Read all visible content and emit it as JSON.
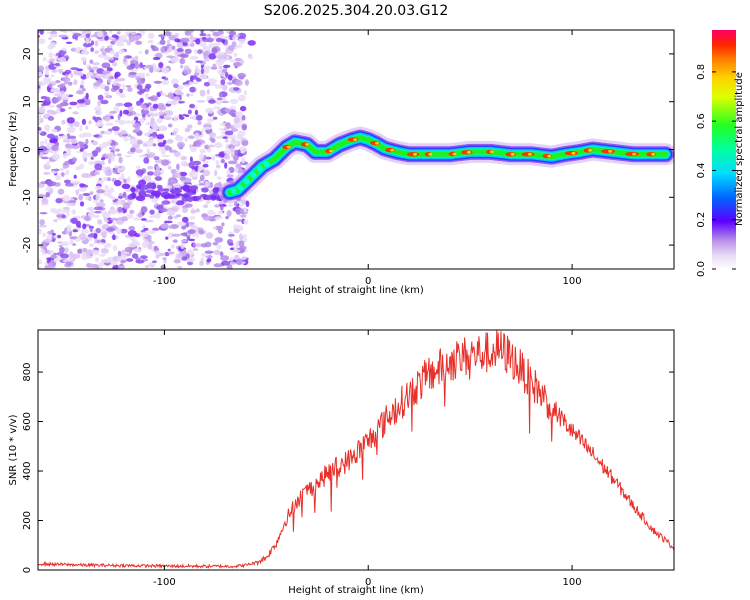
{
  "title": "S206.2025.304.20.03.G12",
  "chart_data": [
    {
      "type": "heatmap",
      "xlabel": "Height of straight line (km)",
      "ylabel": "Frequency (Hz)",
      "xlim": [
        -162,
        150
      ],
      "ylim": [
        -25,
        25
      ],
      "xticks": [
        -100,
        0,
        100
      ],
      "yticks": [
        -20,
        -10,
        0,
        10,
        20
      ],
      "colorbar": {
        "label": "Normalized spectral amplitude",
        "range": [
          0,
          0.97
        ],
        "ticks": [
          0.0,
          0.2,
          0.4,
          0.6,
          0.8
        ]
      },
      "ridge": {
        "x": [
          -68,
          -64,
          -58,
          -52,
          -46,
          -40,
          -36,
          -30,
          -26,
          -20,
          -14,
          -8,
          -4,
          0,
          4,
          8,
          14,
          20,
          30,
          40,
          50,
          60,
          70,
          80,
          90,
          96,
          104,
          110,
          120,
          130,
          140,
          146
        ],
        "y": [
          -9,
          -8.5,
          -6,
          -3.5,
          -2,
          0.5,
          1.5,
          1,
          -0.5,
          -0.5,
          1,
          2,
          2.5,
          2,
          1.2,
          0.2,
          -0.5,
          -1,
          -1,
          -1,
          -0.5,
          -0.5,
          -1,
          -1,
          -1.5,
          -1,
          -0.5,
          0,
          -0.5,
          -1,
          -1,
          -1
        ]
      },
      "noise_region_x": [
        -162,
        -60
      ]
    },
    {
      "type": "line",
      "xlabel": "Height of straight line (km)",
      "ylabel": "SNR (10 * v/v)",
      "xlim": [
        -162,
        150
      ],
      "ylim": [
        0,
        970
      ],
      "xticks": [
        -100,
        0,
        100
      ],
      "yticks": [
        0,
        200,
        400,
        600,
        800
      ],
      "series": [
        {
          "name": "SNR",
          "color": "#e8302a",
          "x": [
            -162,
            -140,
            -120,
            -100,
            -80,
            -65,
            -60,
            -55,
            -50,
            -45,
            -40,
            -35,
            -30,
            -25,
            -20,
            -15,
            -10,
            -5,
            0,
            10,
            20,
            30,
            40,
            50,
            60,
            65,
            70,
            80,
            90,
            100,
            110,
            120,
            130,
            140,
            150
          ],
          "values": [
            25,
            20,
            18,
            16,
            15,
            15,
            20,
            30,
            50,
            110,
            210,
            280,
            320,
            350,
            390,
            420,
            440,
            480,
            520,
            620,
            710,
            790,
            840,
            870,
            880,
            890,
            860,
            760,
            660,
            560,
            470,
            370,
            260,
            160,
            90
          ]
        }
      ]
    }
  ]
}
